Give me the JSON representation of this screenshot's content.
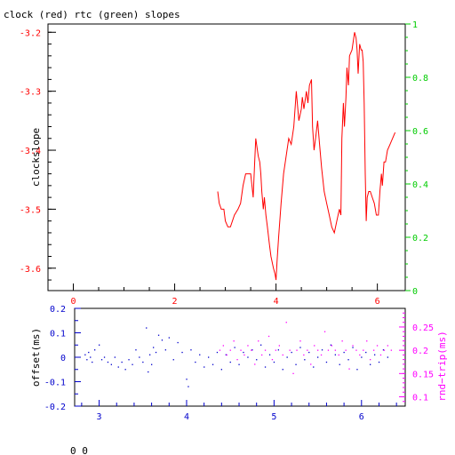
{
  "title": "clock (red) rtc (green) slopes",
  "footer_readout": "0 0",
  "colors": {
    "frame": "#000000",
    "clock": "#ff0000",
    "rtc": "#00cc00",
    "offset": "#0000cc",
    "rndtrip": "#ff00ff",
    "background": "#ffffff"
  },
  "chart_data": [
    {
      "type": "line",
      "name": "top-slopes",
      "ylabel": "clockslope",
      "xlim": [
        -0.5,
        6.55
      ],
      "ylim": [
        -3.638,
        -3.186
      ],
      "y2lim": [
        0,
        1
      ],
      "xticks": [
        0,
        2,
        4,
        6
      ],
      "xtick_labels": [
        "0",
        "2",
        "4",
        "6"
      ],
      "yticks": [
        -3.6,
        -3.5,
        -3.4,
        -3.3,
        -3.2
      ],
      "ytick_labels": [
        "-3.6",
        "-3.5",
        "-3.4",
        "-3.3",
        "-3.2"
      ],
      "y2ticks": [
        0,
        0.2,
        0.4,
        0.6,
        0.8,
        1
      ],
      "y2tick_labels": [
        "0",
        "0.2",
        "0.4",
        "0.6",
        "0.8",
        "1"
      ],
      "series": [
        {
          "name": "clock",
          "x": [
            2.85,
            2.88,
            2.92,
            2.97,
            3.0,
            3.05,
            3.1,
            3.18,
            3.25,
            3.3,
            3.35,
            3.4,
            3.45,
            3.5,
            3.55,
            3.58,
            3.6,
            3.65,
            3.68,
            3.7,
            3.72,
            3.75,
            3.77,
            3.8,
            3.83,
            3.87,
            3.9,
            3.95,
            3.98,
            4.0,
            4.02,
            4.05,
            4.1,
            4.15,
            4.2,
            4.25,
            4.3,
            4.35,
            4.4,
            4.45,
            4.5,
            4.52,
            4.55,
            4.6,
            4.63,
            4.66,
            4.7,
            4.72,
            4.75,
            4.78,
            4.82,
            4.86,
            4.9,
            4.95,
            5.0,
            5.05,
            5.1,
            5.15,
            5.2,
            5.25,
            5.28,
            5.3,
            5.33,
            5.35,
            5.38,
            5.4,
            5.43,
            5.45,
            5.5,
            5.55,
            5.58,
            5.6,
            5.62,
            5.65,
            5.68,
            5.7,
            5.72,
            5.74,
            5.76,
            5.78,
            5.8,
            5.83,
            5.86,
            5.9,
            5.94,
            5.98,
            6.02,
            6.05,
            6.08,
            6.1,
            6.13,
            6.16,
            6.2,
            6.25,
            6.3,
            6.35
          ],
          "y": [
            -3.47,
            -3.49,
            -3.5,
            -3.5,
            -3.52,
            -3.53,
            -3.53,
            -3.51,
            -3.5,
            -3.49,
            -3.46,
            -3.44,
            -3.44,
            -3.44,
            -3.48,
            -3.42,
            -3.38,
            -3.41,
            -3.42,
            -3.44,
            -3.47,
            -3.5,
            -3.48,
            -3.51,
            -3.53,
            -3.56,
            -3.58,
            -3.6,
            -3.61,
            -3.62,
            -3.59,
            -3.55,
            -3.49,
            -3.44,
            -3.41,
            -3.38,
            -3.39,
            -3.36,
            -3.3,
            -3.35,
            -3.33,
            -3.31,
            -3.33,
            -3.3,
            -3.32,
            -3.29,
            -3.28,
            -3.36,
            -3.4,
            -3.38,
            -3.35,
            -3.39,
            -3.43,
            -3.47,
            -3.49,
            -3.51,
            -3.53,
            -3.54,
            -3.52,
            -3.5,
            -3.51,
            -3.38,
            -3.32,
            -3.36,
            -3.31,
            -3.26,
            -3.29,
            -3.24,
            -3.23,
            -3.2,
            -3.21,
            -3.23,
            -3.27,
            -3.22,
            -3.23,
            -3.23,
            -3.25,
            -3.32,
            -3.44,
            -3.52,
            -3.48,
            -3.47,
            -3.47,
            -3.48,
            -3.49,
            -3.51,
            -3.51,
            -3.47,
            -3.44,
            -3.46,
            -3.42,
            -3.42,
            -3.4,
            -3.39,
            -3.38,
            -3.37
          ]
        }
      ]
    },
    {
      "type": "scatter",
      "name": "bottom-offsets",
      "ylabel": "offset(ms)",
      "y2label": "rnd−trip(ms)",
      "xlim": [
        2.72,
        6.5
      ],
      "ylim": [
        -0.2,
        0.2
      ],
      "y2lim": [
        0.08,
        0.29
      ],
      "xticks": [
        3,
        4,
        5,
        6
      ],
      "xtick_labels": [
        "3",
        "4",
        "5",
        "6"
      ],
      "yticks": [
        -0.2,
        -0.1,
        0,
        0.1,
        0.2
      ],
      "ytick_labels": [
        "-0.2",
        "-0.1",
        "0",
        "0.1",
        "0.2"
      ],
      "y2ticks": [
        0.1,
        0.15,
        0.2,
        0.25
      ],
      "y2tick_labels": [
        "0.1",
        "0.15",
        "0.2",
        "0.25"
      ],
      "series": [
        {
          "name": "offset",
          "x": [
            2.84,
            2.86,
            2.88,
            2.9,
            2.92,
            2.95,
            3.0,
            3.03,
            3.06,
            3.1,
            3.14,
            3.18,
            3.22,
            3.26,
            3.3,
            3.34,
            3.38,
            3.42,
            3.46,
            3.5,
            3.54,
            3.56,
            3.58,
            3.6,
            3.62,
            3.65,
            3.68,
            3.72,
            3.76,
            3.8,
            3.85,
            3.9,
            3.95,
            4.0,
            4.02,
            4.05,
            4.1,
            4.15,
            4.2,
            4.25,
            4.3,
            4.35,
            4.4,
            4.45,
            4.5,
            4.55,
            4.6,
            4.65,
            4.7,
            4.75,
            4.8,
            4.85,
            4.9,
            4.95,
            5.0,
            5.05,
            5.1,
            5.15,
            5.2,
            5.25,
            5.3,
            5.35,
            5.4,
            5.45,
            5.5,
            5.55,
            5.6,
            5.65,
            5.7,
            5.75,
            5.8,
            5.85,
            5.9,
            5.95,
            6.0,
            6.05,
            6.1,
            6.15,
            6.2,
            6.25,
            6.3
          ],
          "y": [
            0.01,
            -0.01,
            0.02,
            0.0,
            -0.02,
            0.03,
            0.05,
            -0.01,
            0.0,
            -0.02,
            -0.03,
            0.0,
            -0.04,
            -0.02,
            -0.05,
            -0.01,
            -0.03,
            0.03,
            0.0,
            -0.02,
            0.12,
            -0.06,
            0.01,
            -0.03,
            0.04,
            0.02,
            0.09,
            0.07,
            0.03,
            0.08,
            -0.01,
            0.06,
            0.02,
            -0.09,
            -0.12,
            0.03,
            -0.02,
            0.01,
            -0.04,
            0.0,
            -0.03,
            0.02,
            -0.05,
            0.01,
            -0.02,
            0.04,
            -0.03,
            0.02,
            0.0,
            0.03,
            -0.01,
            0.05,
            -0.04,
            0.01,
            -0.02,
            0.03,
            -0.05,
            0.0,
            0.02,
            -0.03,
            0.04,
            -0.01,
            0.02,
            -0.04,
            0.0,
            0.03,
            -0.02,
            0.05,
            0.01,
            -0.03,
            0.02,
            -0.01,
            0.04,
            -0.05,
            0.0,
            0.02,
            -0.03,
            0.01,
            -0.02,
            0.03,
            0.0
          ]
        },
        {
          "name": "rndtrip",
          "x": [
            4.38,
            4.42,
            4.46,
            4.5,
            4.54,
            4.58,
            4.62,
            4.66,
            4.7,
            4.74,
            4.78,
            4.82,
            4.86,
            4.9,
            4.94,
            4.98,
            5.02,
            5.06,
            5.1,
            5.14,
            5.18,
            5.22,
            5.26,
            5.3,
            5.34,
            5.38,
            5.42,
            5.46,
            5.5,
            5.54,
            5.58,
            5.62,
            5.66,
            5.7,
            5.74,
            5.78,
            5.82,
            5.86,
            5.9,
            5.94,
            5.98,
            6.02,
            6.06,
            6.1,
            6.14,
            6.18,
            6.22,
            6.26,
            6.3,
            6.34
          ],
          "y": [
            0.2,
            0.21,
            0.19,
            0.2,
            0.22,
            0.18,
            0.2,
            0.19,
            0.21,
            0.2,
            0.17,
            0.22,
            0.19,
            0.2,
            0.23,
            0.18,
            0.2,
            0.21,
            0.19,
            0.26,
            0.2,
            0.15,
            0.2,
            0.22,
            0.19,
            0.2,
            0.17,
            0.21,
            0.2,
            0.19,
            0.24,
            0.2,
            0.21,
            0.2,
            0.19,
            0.22,
            0.2,
            0.16,
            0.21,
            0.2,
            0.19,
            0.2,
            0.22,
            0.18,
            0.2,
            0.21,
            0.19,
            0.2,
            0.21,
            0.2
          ]
        }
      ]
    }
  ]
}
